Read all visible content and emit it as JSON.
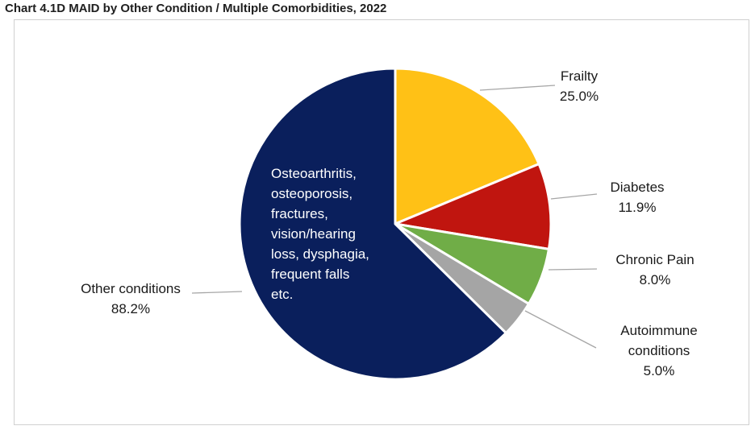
{
  "chart_data": {
    "type": "pie",
    "title": "Chart 4.1D MAID by Other Condition / Multiple Comorbidities, 2022",
    "slices": [
      {
        "name": "Frailty",
        "value_label": "25.0%",
        "percent": 18.7,
        "color": "#FFC116"
      },
      {
        "name": "Diabetes",
        "value_label": "11.9%",
        "percent": 8.9,
        "color": "#C0150F"
      },
      {
        "name": "Chronic Pain",
        "value_label": "8.0%",
        "percent": 6.0,
        "color": "#70AD47"
      },
      {
        "name": "Autoimmune conditions",
        "value_label": "5.0%",
        "percent": 3.8,
        "color": "#A5A5A5"
      },
      {
        "name": "Other conditions",
        "value_label": "88.2%",
        "percent": 62.6,
        "color": "#0A1F5C"
      }
    ],
    "annotation": [
      "Osteoarthritis,",
      "osteoporosis,",
      "fractures,",
      "vision/hearing",
      "loss, dysphagia,",
      "frequent falls",
      "etc."
    ]
  }
}
